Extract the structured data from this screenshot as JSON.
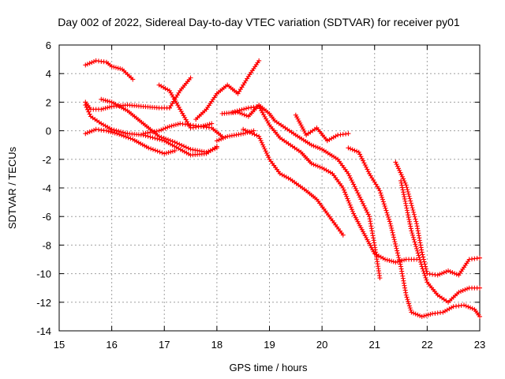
{
  "chart_data": {
    "type": "scatter",
    "title": "Day 002 of 2022, Sidereal Day-to-day VTEC variation (SDTVAR) for receiver py01",
    "xlabel": "GPS time / hours",
    "ylabel": "SDTVAR / TECUs",
    "xlim": [
      15,
      23
    ],
    "ylim": [
      -14,
      6
    ],
    "xticks": [
      15,
      16,
      17,
      18,
      19,
      20,
      21,
      22,
      23
    ],
    "yticks": [
      -14,
      -12,
      -10,
      -8,
      -6,
      -4,
      -2,
      0,
      2,
      4,
      6
    ],
    "grid": true,
    "marker": "+",
    "color": "#ff0000",
    "series": [
      {
        "name": "s1",
        "x": [
          15.5,
          15.7,
          15.9,
          16.0,
          16.2,
          16.4
        ],
        "y": [
          4.6,
          4.9,
          4.8,
          4.5,
          4.3,
          3.6
        ]
      },
      {
        "name": "s2",
        "x": [
          15.5,
          15.6,
          15.8,
          16.0,
          16.3,
          16.6,
          16.9,
          17.1
        ],
        "y": [
          2.0,
          1.5,
          1.5,
          1.7,
          1.8,
          1.7,
          1.6,
          1.6
        ]
      },
      {
        "name": "s3",
        "x": [
          17.1,
          17.3,
          17.5
        ],
        "y": [
          1.6,
          2.8,
          3.7
        ]
      },
      {
        "name": "s4",
        "x": [
          15.5,
          15.7,
          15.9,
          16.1,
          16.4,
          16.7,
          17.0,
          17.2
        ],
        "y": [
          -0.2,
          0.1,
          0.0,
          -0.2,
          -0.6,
          -1.2,
          -1.6,
          -1.4
        ]
      },
      {
        "name": "s5",
        "x": [
          15.5,
          15.6,
          15.8,
          16.0,
          16.3,
          16.6,
          17.0,
          17.5,
          17.8,
          18.0
        ],
        "y": [
          1.8,
          1.0,
          0.5,
          0.1,
          -0.2,
          -0.3,
          -0.7,
          -1.7,
          -1.6,
          -1.1
        ]
      },
      {
        "name": "s6",
        "x": [
          15.8,
          16.0,
          16.3,
          16.6,
          16.9,
          17.2,
          17.5,
          17.8,
          18.0
        ],
        "y": [
          2.2,
          2.0,
          1.4,
          0.5,
          -0.4,
          -0.8,
          -1.3,
          -1.5,
          -1.2
        ]
      },
      {
        "name": "s7",
        "x": [
          16.6,
          16.9,
          17.1,
          17.3,
          17.5,
          17.7,
          17.9,
          18.1
        ],
        "y": [
          -0.2,
          0.0,
          0.3,
          0.5,
          0.4,
          0.3,
          0.2,
          -0.4
        ]
      },
      {
        "name": "s8",
        "x": [
          16.9,
          17.1,
          17.3,
          17.5,
          17.7,
          17.9
        ],
        "y": [
          3.2,
          2.8,
          1.5,
          0.2,
          0.3,
          0.5
        ]
      },
      {
        "name": "s9",
        "x": [
          17.6,
          17.8,
          18.0,
          18.2,
          18.4,
          18.6,
          18.8
        ],
        "y": [
          0.8,
          1.5,
          2.6,
          3.2,
          2.6,
          3.8,
          4.9
        ]
      },
      {
        "name": "s10",
        "x": [
          18.0,
          18.2,
          18.5,
          18.7
        ],
        "y": [
          -0.7,
          -0.4,
          -0.2,
          0.0
        ]
      },
      {
        "name": "s11",
        "x": [
          18.5,
          18.8,
          19.0,
          19.2,
          19.4,
          19.7,
          19.9,
          20.2,
          20.4
        ],
        "y": [
          0.1,
          -0.4,
          -2.0,
          -3.0,
          -3.4,
          -4.2,
          -4.8,
          -6.3,
          -7.3
        ]
      },
      {
        "name": "s12",
        "x": [
          18.1,
          18.4,
          18.6,
          18.8,
          19.0,
          19.1,
          19.3,
          19.5,
          19.8,
          20.0,
          20.3,
          20.5,
          20.7,
          20.9,
          21.0,
          21.1
        ],
        "y": [
          1.2,
          1.3,
          1.0,
          1.8,
          1.2,
          0.7,
          0.2,
          -0.3,
          -1.0,
          -1.3,
          -2.0,
          -3.0,
          -4.5,
          -6.0,
          -8.0,
          -10.3
        ]
      },
      {
        "name": "s13",
        "x": [
          18.3,
          18.6,
          18.8,
          19.0,
          19.2,
          19.4,
          19.6,
          19.8,
          20.0,
          20.2,
          20.4,
          20.6,
          20.8,
          21.0,
          21.2,
          21.4,
          21.6,
          21.8
        ],
        "y": [
          1.3,
          1.6,
          1.7,
          0.4,
          -0.5,
          -1.0,
          -1.5,
          -2.3,
          -2.6,
          -3.0,
          -4.0,
          -5.8,
          -7.2,
          -8.6,
          -9.0,
          -9.2,
          -9.0,
          -9.0
        ]
      },
      {
        "name": "s14",
        "x": [
          19.5,
          19.7,
          19.9,
          20.1,
          20.3,
          20.5
        ],
        "y": [
          1.1,
          -0.3,
          0.2,
          -0.7,
          -0.3,
          -0.2
        ]
      },
      {
        "name": "s15",
        "x": [
          20.5,
          20.7,
          20.9,
          21.1,
          21.3,
          21.5,
          21.6,
          21.7,
          21.9,
          22.1,
          22.3,
          22.5,
          22.7,
          22.9,
          23.0
        ],
        "y": [
          -1.2,
          -1.5,
          -3.0,
          -4.2,
          -6.5,
          -9.5,
          -11.5,
          -12.7,
          -13.0,
          -12.8,
          -12.7,
          -12.3,
          -12.2,
          -12.5,
          -13.0
        ]
      },
      {
        "name": "s16",
        "x": [
          21.4,
          21.6,
          21.8,
          21.9,
          22.0,
          22.2,
          22.4,
          22.6,
          22.8,
          23.0
        ],
        "y": [
          -2.2,
          -3.8,
          -6.5,
          -8.5,
          -10.0,
          -10.1,
          -9.8,
          -10.1,
          -9.0,
          -8.9
        ]
      },
      {
        "name": "s17",
        "x": [
          21.5,
          21.7,
          21.9,
          22.0,
          22.2,
          22.4,
          22.6,
          22.8,
          23.0
        ],
        "y": [
          -3.5,
          -7.0,
          -9.5,
          -10.6,
          -11.5,
          -12.0,
          -11.3,
          -11.0,
          -11.0
        ]
      }
    ]
  }
}
